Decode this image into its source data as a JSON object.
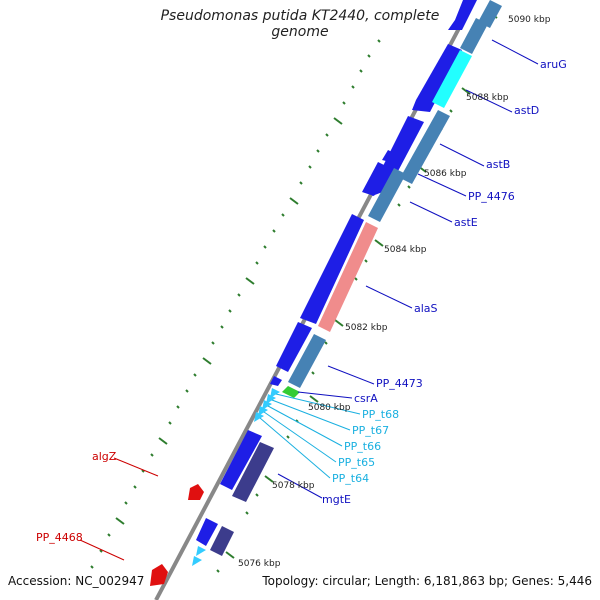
{
  "title": "Pseudomonas putida KT2440, complete genome",
  "accession": "Accession: NC_002947",
  "topology": "Topology: circular; Length: 6,181,863 bp; Genes: 5,446",
  "colors": {
    "backbone": "#888888",
    "tick": "#2e7d2e",
    "cds_forward": "#1e1ee6",
    "cds_reverse": "#4682b4",
    "cds_reverse_dark": "#3c3c8c",
    "trna": "#33ccff",
    "ncrna": "#33cc33",
    "highlight_cyan": "#22ffff",
    "highlight_salmon": "#f08c8c",
    "red_gene": "#e01010",
    "label_blue": "#1010c0",
    "label_cyan": "#1ab0e0",
    "label_red": "#cc0000"
  },
  "kbp_labels": [
    "5090 kbp",
    "5088 kbp",
    "5086 kbp",
    "5084 kbp",
    "5082 kbp",
    "5080 kbp",
    "5078 kbp",
    "5076 kbp"
  ],
  "gene_labels": {
    "aruG": "aruG",
    "astD": "astD",
    "astB": "astB",
    "pp4476": "PP_4476",
    "astE": "astE",
    "alaS": "alaS",
    "pp4473": "PP_4473",
    "csrA": "csrA",
    "ppt68": "PP_t68",
    "ppt67": "PP_t67",
    "ppt66": "PP_t66",
    "ppt65": "PP_t65",
    "ppt64": "PP_t64",
    "mgtE": "mgtE",
    "algZ": "algZ",
    "pp4468": "PP_4468"
  }
}
